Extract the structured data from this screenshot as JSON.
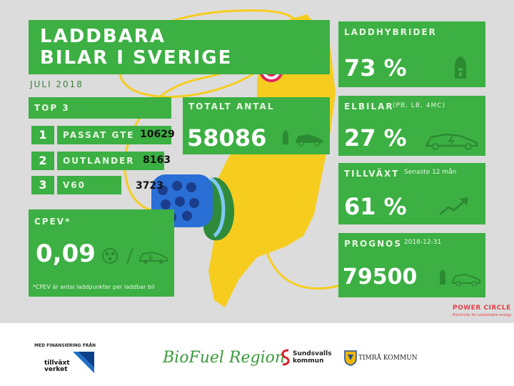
{
  "header": {
    "title_line1": "LADDBARA",
    "title_line2": "BILAR I SVERIGE",
    "date": "JULI 2018"
  },
  "top3": {
    "title": "TOP 3",
    "rows": [
      {
        "rank": "1",
        "model": "PASSAT GTE",
        "count": "10629"
      },
      {
        "rank": "2",
        "model": "OUTLANDER",
        "count": "8163"
      },
      {
        "rank": "3",
        "model": "V60",
        "count": "3723"
      }
    ]
  },
  "cpev": {
    "title": "CPEV*",
    "value": "0,09",
    "note": "*CPEV är antal laddpunkter per laddbar bil"
  },
  "totalt": {
    "title": "TOTALT ANTAL",
    "value": "58086"
  },
  "laddhybrider": {
    "title": "LADDHYBRIDER",
    "value": "73 %"
  },
  "elbilar": {
    "title": "ELBILAR",
    "subtitle": "(PB, LB, 4MC)",
    "value": "27 %"
  },
  "tillvaxt": {
    "title": "TILLVÄXT",
    "subtitle": "Senaste 12 mån",
    "value": "61 %"
  },
  "prognos": {
    "title": "PROGNOS",
    "subtitle": "2018-12-31",
    "value": "79500"
  },
  "brand": {
    "name": "POWER CIRCLE",
    "tagline": "Electricity for sustainable energy"
  },
  "footer": {
    "funding_label": "MED FINANSIERING FRÅN",
    "tillvaxt_line1": "tillväxt",
    "tillvaxt_line2": "verket",
    "biofuel": "BioFuel Region",
    "sundsvall_line1": "Sundsvalls",
    "sundsvall_line2": "kommun",
    "timra": "TIMRÅ KOMMUN"
  },
  "colors": {
    "panel_green": "#3cb043",
    "map_yellow": "#f6cd1f",
    "background_gray": "#dcdcdc",
    "pin_red": "#e0245e",
    "plug_blue": "#2a6fd6",
    "brand_red": "#e2424a"
  }
}
